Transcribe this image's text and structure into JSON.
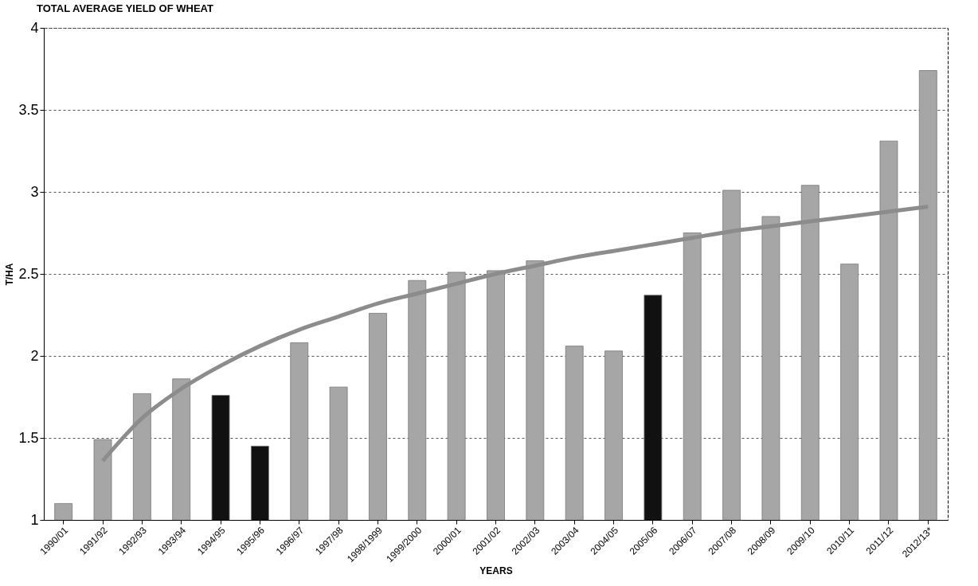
{
  "chart_data": {
    "type": "bar",
    "title": "TOTAL AVERAGE YIELD OF WHEAT",
    "xlabel": "YEARS",
    "ylabel": "T/HA",
    "categories": [
      "1990/01",
      "1991/92",
      "1992/93",
      "1993/94",
      "1994/95",
      "1995/96",
      "1996/97",
      "1997/98",
      "1998/1999",
      "1999/2000",
      "2000/01",
      "2001/02",
      "2002/03",
      "2003/04",
      "2004/05",
      "2005/06",
      "2006/07",
      "2007/08",
      "2008/09",
      "2009/10",
      "2010/11",
      "2011/12",
      "2012/13*"
    ],
    "series": [
      {
        "colors": [
          "#a6a6a6",
          "#a6a6a6",
          "#a6a6a6",
          "#a6a6a6",
          "#111111",
          "#111111",
          "#a6a6a6",
          "#a6a6a6",
          "#a6a6a6",
          "#a6a6a6",
          "#a6a6a6",
          "#a6a6a6",
          "#a6a6a6",
          "#a6a6a6",
          "#a6a6a6",
          "#111111",
          "#a6a6a6",
          "#a6a6a6",
          "#a6a6a6",
          "#a6a6a6",
          "#a6a6a6",
          "#a6a6a6",
          "#a6a6a6"
        ],
        "values": [
          1.1,
          1.49,
          1.77,
          1.86,
          1.76,
          1.45,
          2.08,
          1.81,
          2.26,
          2.46,
          2.51,
          2.52,
          2.58,
          2.06,
          2.03,
          2.37,
          2.75,
          3.01,
          2.85,
          3.04,
          2.56,
          3.31,
          3.74
        ]
      },
      {
        "type": "line",
        "color": "#8c8c8c",
        "values": [
          null,
          1.36,
          1.62,
          1.8,
          1.94,
          2.06,
          2.16,
          2.24,
          2.32,
          2.38,
          2.44,
          2.5,
          2.55,
          2.6,
          2.64,
          2.68,
          2.72,
          2.76,
          2.79,
          2.82,
          2.85,
          2.88,
          2.91
        ]
      }
    ],
    "ylim": [
      1,
      4
    ],
    "yticks": [
      1,
      1.5,
      2,
      2.5,
      3,
      3.5,
      4
    ],
    "grid": "y"
  }
}
